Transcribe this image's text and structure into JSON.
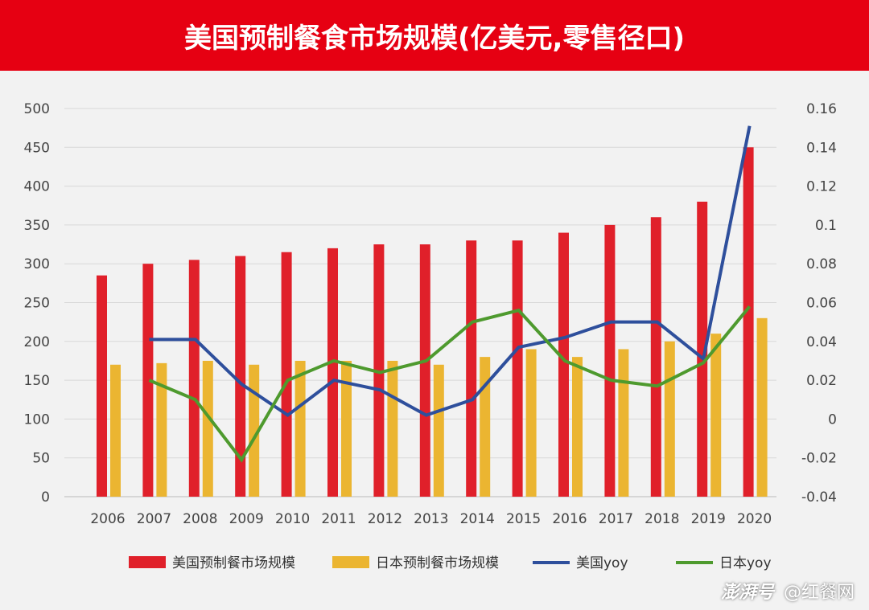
{
  "header": {
    "title": "美国预制餐食市场规模(亿美元,零售径口)"
  },
  "footer": {
    "source": "澎湃号",
    "account": "@红餐网"
  },
  "chart_data": {
    "type": "bar+line",
    "title": "美国预制餐食市场规模(亿美元,零售径口)",
    "categories": [
      "2006",
      "2007",
      "2008",
      "2009",
      "2010",
      "2011",
      "2012",
      "2013",
      "2014",
      "2015",
      "2016",
      "2017",
      "2018",
      "2019",
      "2020"
    ],
    "y_left": {
      "range": [
        0,
        500
      ],
      "ticks": [
        "0",
        "50",
        "100",
        "150",
        "200",
        "250",
        "300",
        "350",
        "400",
        "450",
        "500"
      ]
    },
    "y_right": {
      "range": [
        -0.04,
        0.16
      ],
      "ticks": [
        "-0.04",
        "-0.02",
        "0",
        "0.02",
        "0.04",
        "0.06",
        "0.08",
        "0.1",
        "0.12",
        "0.14",
        "0.16"
      ]
    },
    "grid": true,
    "legend_position": "bottom",
    "series": [
      {
        "name": "美国预制餐市场规模",
        "type": "bar",
        "axis": "left",
        "color": "#e0202a",
        "values": [
          285,
          300,
          305,
          310,
          315,
          320,
          325,
          325,
          330,
          330,
          340,
          350,
          360,
          380,
          450
        ]
      },
      {
        "name": "日本预制餐市场规模",
        "type": "bar",
        "axis": "left",
        "color": "#ebb531",
        "values": [
          170,
          172,
          175,
          170,
          175,
          175,
          175,
          170,
          180,
          190,
          180,
          190,
          200,
          210,
          230
        ]
      },
      {
        "name": "美国yoy",
        "type": "line",
        "axis": "right",
        "color": "#2e4f9c",
        "values": [
          null,
          0.041,
          0.041,
          0.018,
          0.002,
          0.02,
          0.015,
          0.002,
          0.01,
          0.037,
          0.042,
          0.05,
          0.05,
          0.031,
          0.151
        ]
      },
      {
        "name": "日本yoy",
        "type": "line",
        "axis": "right",
        "color": "#4e9a2e",
        "values": [
          null,
          0.02,
          0.01,
          -0.021,
          0.02,
          0.03,
          0.024,
          0.03,
          0.05,
          0.056,
          0.03,
          0.02,
          0.017,
          0.029,
          0.058
        ]
      }
    ]
  }
}
